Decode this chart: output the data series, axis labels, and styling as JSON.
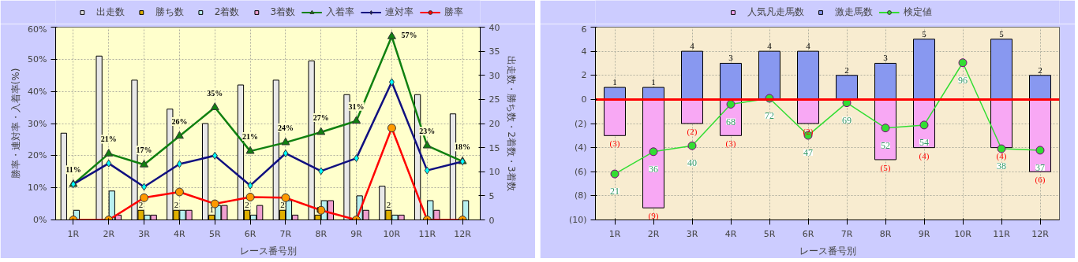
{
  "chart_data": [
    {
      "type": "bar",
      "xlabel": "レース番号別",
      "ylabel": "勝率・連対率・入着率(%)",
      "y2label": "出走数・勝ち数・2着数・3着数",
      "categories": [
        "1R",
        "2R",
        "3R",
        "4R",
        "5R",
        "6R",
        "7R",
        "8R",
        "9R",
        "10R",
        "11R",
        "12R"
      ],
      "series": [
        {
          "name": "出走数",
          "type": "bar",
          "axis": "y2",
          "color": "#e8e8e8",
          "values": [
            18,
            34,
            29,
            23,
            20,
            28,
            29,
            33,
            26,
            7,
            26,
            22
          ]
        },
        {
          "name": "勝ち数",
          "type": "bar",
          "axis": "y2",
          "color": "#e0b000",
          "values": [
            0,
            0,
            2,
            2,
            1,
            2,
            2,
            1,
            0,
            2,
            0,
            0
          ],
          "value_labels": [
            null,
            null,
            "2",
            "2",
            "1",
            "2",
            "2",
            "1",
            null,
            "2",
            null,
            null
          ]
        },
        {
          "name": "2着数",
          "type": "bar",
          "axis": "y2",
          "color": "#b8f0f0",
          "values": [
            2,
            6,
            1,
            2,
            3,
            1,
            4,
            4,
            5,
            1,
            4,
            4
          ]
        },
        {
          "name": "3着数",
          "type": "bar",
          "axis": "y2",
          "color": "#f0a0d0",
          "values": [
            0,
            1,
            1,
            2,
            3,
            3,
            1,
            4,
            2,
            1,
            2,
            0
          ]
        },
        {
          "name": "入着率",
          "type": "line",
          "marker": "triangle",
          "color": "#108010",
          "values": [
            11.1,
            20.6,
            17.2,
            26.1,
            35,
            21.4,
            24.1,
            27.3,
            30.8,
            57.1,
            23.1,
            18.2
          ],
          "value_labels": [
            "11%",
            "21%",
            "17%",
            "26%",
            "35%",
            "21%",
            "24%",
            "27%",
            "31%",
            "57%",
            "23%",
            "18%"
          ]
        },
        {
          "name": "連対率",
          "type": "line",
          "marker": "diamond",
          "color": "#101080",
          "values": [
            11.1,
            17.6,
            10.3,
            17.4,
            20,
            10.7,
            20.7,
            15.2,
            19.2,
            42.9,
            15.4,
            18.2
          ]
        },
        {
          "name": "勝率",
          "type": "line",
          "marker": "circle",
          "color": "#ff0000",
          "values": [
            0,
            0,
            6.9,
            8.7,
            5,
            7.1,
            6.9,
            3,
            0,
            28.6,
            0,
            0
          ]
        }
      ],
      "ylim": [
        0,
        60
      ],
      "yticks": [
        {
          "value": 0,
          "label": "0%"
        },
        {
          "value": 10,
          "label": "10%"
        },
        {
          "value": 20,
          "label": "20%"
        },
        {
          "value": 30,
          "label": "30%"
        },
        {
          "value": 40,
          "label": "40%"
        },
        {
          "value": 50,
          "label": "50%"
        },
        {
          "value": 60,
          "label": "60%"
        }
      ],
      "y2lim": [
        0,
        40
      ],
      "y2ticks": [
        0,
        5,
        10,
        15,
        20,
        25,
        30,
        35,
        40
      ],
      "grid": true,
      "legend": "top"
    },
    {
      "type": "bar",
      "stacked": true,
      "xlabel": "レース番号別",
      "categories": [
        "1R",
        "2R",
        "3R",
        "4R",
        "5R",
        "6R",
        "7R",
        "8R",
        "9R",
        "10R",
        "11R",
        "12R"
      ],
      "series": [
        {
          "name": "人気凡走馬数",
          "type": "bar",
          "color": "#f8a8f4",
          "values": [
            -3,
            -9,
            -2,
            -3,
            null,
            -2,
            null,
            -5,
            -4,
            null,
            -4,
            -6
          ],
          "value_labels": [
            "(3)",
            "(9)",
            "(2)",
            "(3)",
            null,
            "(2)",
            null,
            "(5)",
            "(4)",
            null,
            "(4)",
            "(6)"
          ]
        },
        {
          "name": "激走馬数",
          "type": "bar",
          "color": "#8898f0",
          "values": [
            1,
            1,
            4,
            3,
            4,
            4,
            2,
            3,
            5,
            null,
            5,
            2
          ],
          "value_labels": [
            "1",
            "1",
            "4",
            "3",
            "4",
            "4",
            "2",
            "3",
            "5",
            null,
            "5",
            "2"
          ]
        },
        {
          "name": "検定値",
          "type": "line",
          "axis": "y2",
          "marker": "circle",
          "color": "#33dd33",
          "values": [
            21,
            36,
            40,
            68,
            72,
            47,
            69,
            52,
            54,
            96,
            38,
            37
          ],
          "value_labels": [
            "21",
            "36",
            "40",
            "68",
            "72",
            "47",
            "69",
            "52",
            "54",
            "96",
            "38",
            "37"
          ]
        }
      ],
      "ylim": [
        -10,
        6
      ],
      "yticks": [
        {
          "value": -10,
          "label": "(10)"
        },
        {
          "value": -8,
          "label": "(8)"
        },
        {
          "value": -6,
          "label": "(6)"
        },
        {
          "value": -4,
          "label": "(4)"
        },
        {
          "value": -2,
          "label": "(2)"
        },
        0,
        2,
        4,
        6
      ],
      "y2lim": [
        -10,
        120
      ],
      "tick_labels": "xy",
      "ref_lines": [
        {
          "axis": "y",
          "value": 0,
          "color": "#ff0000"
        }
      ],
      "grid": true,
      "legend": "top"
    }
  ]
}
